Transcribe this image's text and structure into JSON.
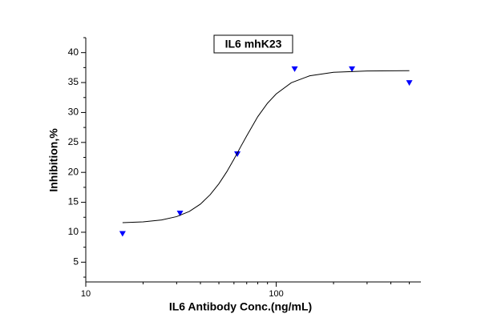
{
  "chart_data": {
    "type": "scatter",
    "title": "IL6 mhK23",
    "x_label": "IL6 Antibody Conc.(ng/mL)",
    "y_label": "Inhibition,%",
    "xscale": "log",
    "xlim": [
      10,
      575
    ],
    "xticks": [
      10,
      100
    ],
    "xminorticks": [
      20,
      30,
      40,
      50,
      60,
      70,
      80,
      90,
      200,
      300,
      400,
      500
    ],
    "ylim": [
      1.7,
      42.5
    ],
    "yticks": [
      5,
      10,
      15,
      20,
      25,
      30,
      35,
      40
    ],
    "yminorticks": [
      2.5,
      7.5,
      12.5,
      17.5,
      22.5,
      27.5,
      32.5,
      37.5,
      42.5
    ],
    "series": [
      {
        "type": "scatter",
        "marker": "triangle-down",
        "color": "#0000ff",
        "x": [
          15.6,
          31.25,
          62.5,
          125,
          250,
          500
        ],
        "values": [
          9.8,
          13.2,
          23.1,
          37.3,
          37.3,
          35.0
        ]
      },
      {
        "type": "line",
        "color": "#000000",
        "x": [
          15.6,
          20,
          25,
          30,
          35,
          40,
          45,
          50,
          55,
          60,
          65,
          70,
          80,
          90,
          100,
          120,
          150,
          200,
          300,
          500
        ],
        "values": [
          11.6,
          11.73,
          12.05,
          12.61,
          13.48,
          14.7,
          16.27,
          18.1,
          20.1,
          22.2,
          24.25,
          26.1,
          29.3,
          31.55,
          33.1,
          34.97,
          36.13,
          36.72,
          36.94,
          36.99
        ]
      }
    ]
  }
}
